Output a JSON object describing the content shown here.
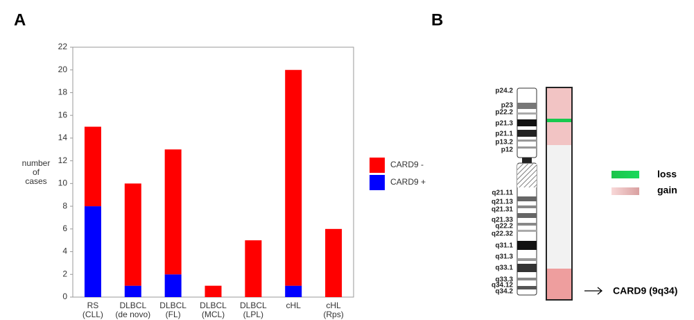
{
  "chart_data": {
    "type": "bar",
    "stacked": true,
    "panel_label": "A",
    "categories": [
      [
        "RS",
        "(CLL)"
      ],
      [
        "DLBCL",
        "(de novo)"
      ],
      [
        "DLBCL",
        "(FL)"
      ],
      [
        "DLBCL",
        "(MCL)"
      ],
      [
        "DLBCL",
        "(LPL)"
      ],
      [
        "cHL",
        null
      ],
      [
        "cHL",
        "(Rps)"
      ]
    ],
    "series": [
      {
        "name": "CARD9 +",
        "color": "#0000ff",
        "values": [
          8,
          1,
          2,
          0,
          0,
          1,
          0
        ]
      },
      {
        "name": "CARD9 -",
        "color": "#ff0000",
        "values": [
          7,
          9,
          11,
          1,
          5,
          19,
          6
        ]
      }
    ],
    "ylabel": [
      "number",
      "of",
      "cases"
    ],
    "ylim": [
      0,
      22
    ],
    "yticks": [
      0,
      2,
      4,
      6,
      8,
      10,
      12,
      14,
      16,
      18,
      20,
      22
    ],
    "grid": false,
    "legend": "right"
  },
  "panel_b": {
    "label": "B",
    "bands": [
      "p24.2",
      "p23",
      "p22.2",
      "p21.3",
      "p21.1",
      "p13.2",
      "p12",
      "q21.11",
      "q21.13",
      "q21.31",
      "q21.33",
      "q22.2",
      "q22.32",
      "q31.1",
      "q31.3",
      "q33.1",
      "q33.3",
      "q34.12",
      "q34.2"
    ],
    "legend": [
      "loss",
      "gain"
    ],
    "annotation": "CARD9 (9q34)"
  }
}
